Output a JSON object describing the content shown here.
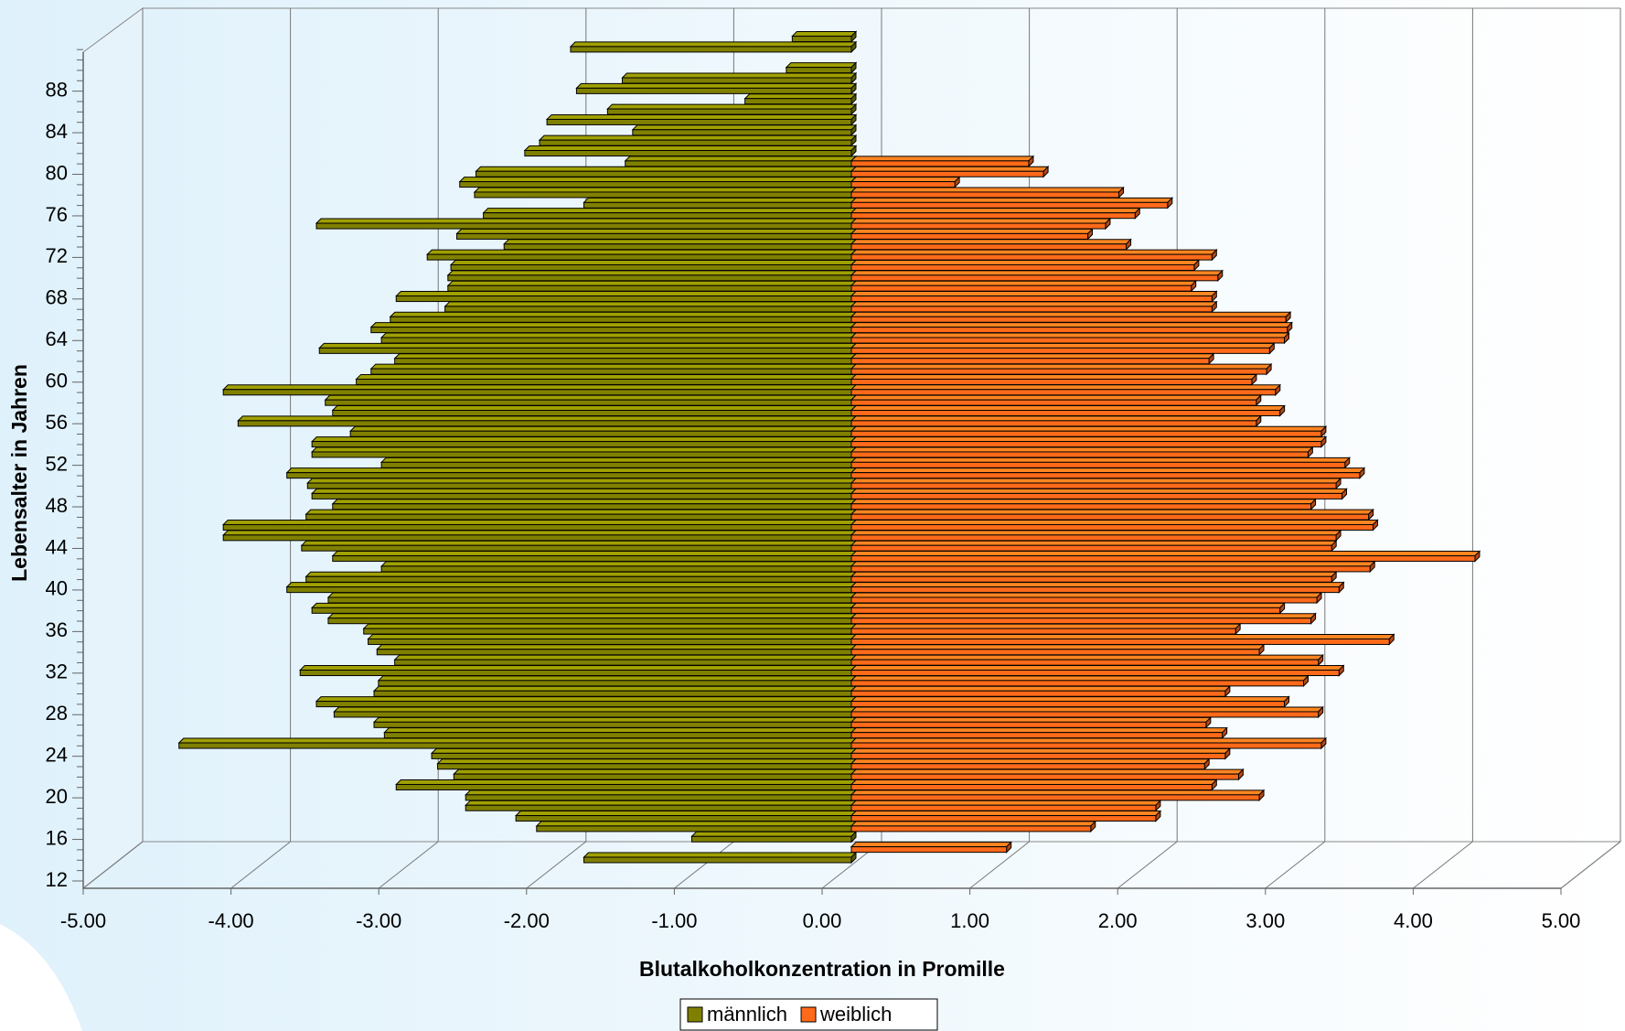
{
  "chart_data": {
    "type": "bar",
    "y_label": "Lebensalter in Jahren",
    "x_label": "Blutalkoholkonzentration in Promille",
    "categories": [
      12,
      null,
      null,
      null,
      16,
      null,
      null,
      null,
      20,
      null,
      null,
      null,
      24,
      null,
      null,
      null,
      28,
      null,
      null,
      null,
      32,
      null,
      null,
      null,
      36,
      null,
      null,
      null,
      40,
      null,
      null,
      null,
      44,
      null,
      null,
      null,
      48,
      null,
      null,
      null,
      52,
      null,
      null,
      null,
      56,
      null,
      null,
      null,
      60,
      null,
      null,
      null,
      64,
      null,
      null,
      null,
      68,
      null,
      null,
      null,
      72,
      null,
      null,
      null,
      76,
      null,
      null,
      null,
      80,
      null,
      null,
      null,
      84,
      null,
      null,
      null,
      88,
      null,
      null,
      null
    ],
    "series": [
      {
        "name": "männlich",
        "color": "#808000",
        "values": [
          -1.81,
          null,
          -1.08,
          -2.13,
          -2.27,
          -2.61,
          -2.61,
          -3.08,
          -2.69,
          -2.8,
          -2.84,
          -4.55,
          -3.16,
          -3.23,
          -3.5,
          -3.62,
          -3.23,
          -3.2,
          -3.73,
          -3.09,
          -3.21,
          -3.27,
          -3.3,
          -3.54,
          -3.65,
          -3.54,
          -3.82,
          -3.69,
          -3.18,
          -3.51,
          -3.72,
          -4.25,
          -4.25,
          -3.69,
          -3.51,
          -3.65,
          -3.68,
          -3.82,
          -3.18,
          -3.65,
          -3.65,
          -3.39,
          -4.15,
          -3.51,
          -3.56,
          -4.25,
          -3.35,
          -3.25,
          -3.09,
          -3.6,
          -3.18,
          -3.25,
          -3.12,
          -2.75,
          -3.08,
          -2.73,
          -2.73,
          -2.71,
          -2.87,
          -2.35,
          -2.67,
          -3.62,
          -2.49,
          -1.81,
          -2.55,
          -2.65,
          -2.54,
          -1.53,
          -2.21,
          -2.11,
          -1.48,
          -2.06,
          -1.65,
          -0.72,
          -1.86,
          -1.55,
          -0.44,
          null,
          -1.9,
          -0.4
        ]
      },
      {
        "name": "weiblich",
        "color": "#ff6a1a",
        "values": [
          null,
          1.05,
          null,
          1.62,
          2.06,
          2.06,
          2.76,
          2.44,
          2.62,
          2.39,
          2.53,
          3.18,
          2.51,
          2.4,
          3.16,
          2.93,
          2.53,
          3.06,
          3.3,
          3.16,
          2.76,
          3.64,
          2.6,
          3.11,
          2.9,
          3.15,
          3.3,
          3.25,
          3.51,
          4.22,
          3.25,
          3.28,
          3.53,
          3.5,
          3.11,
          3.32,
          3.28,
          3.44,
          3.34,
          3.09,
          3.18,
          3.18,
          2.74,
          2.9,
          2.74,
          2.87,
          2.71,
          2.81,
          2.42,
          2.83,
          2.93,
          2.95,
          2.94,
          2.44,
          2.44,
          2.3,
          2.48,
          2.32,
          2.44,
          1.86,
          1.6,
          1.72,
          1.92,
          2.14,
          1.81,
          0.7,
          1.3,
          1.2,
          null,
          null,
          null,
          null,
          null,
          null,
          null,
          null,
          null,
          null,
          null,
          null
        ]
      }
    ],
    "xlim": [
      -5,
      5
    ],
    "xticks": [
      {
        "value": -5,
        "label": "-5.00"
      },
      {
        "value": -4,
        "label": "-4.00"
      },
      {
        "value": -3,
        "label": "-3.00"
      },
      {
        "value": -2,
        "label": "-2.00"
      },
      {
        "value": -1,
        "label": "-1.00"
      },
      {
        "value": 0,
        "label": "0.00"
      },
      {
        "value": 1,
        "label": "1.00"
      },
      {
        "value": 2,
        "label": "2.00"
      },
      {
        "value": 3,
        "label": "3.00"
      },
      {
        "value": 4,
        "label": "4.00"
      },
      {
        "value": 5,
        "label": "5.00"
      }
    ],
    "grid": true,
    "legend": "bottom"
  }
}
